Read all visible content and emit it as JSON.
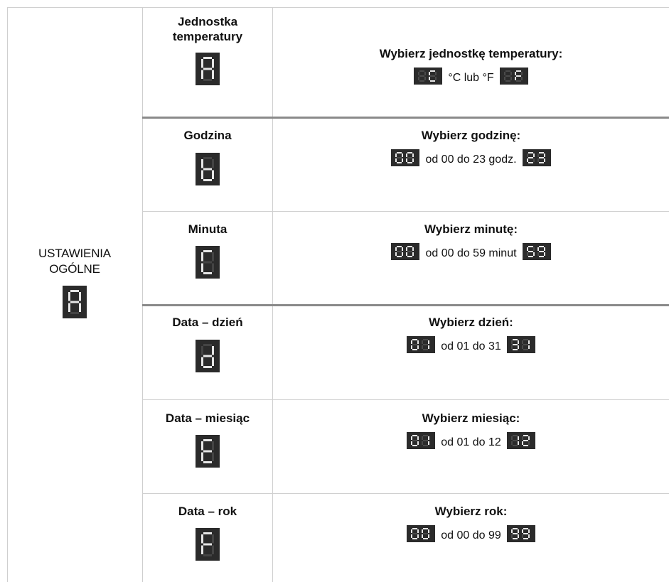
{
  "category": {
    "label_line1": "USTAWIENIA",
    "label_line2": "OGÓLNE",
    "display_char": "A"
  },
  "rows": [
    {
      "name_line1": "Jednostka",
      "name_line2": "temperatury",
      "display_char": "A",
      "title": "Wybierz jednostkę temperatury:",
      "range_text": "°C lub °F",
      "start_display": "C",
      "end_display": "F"
    },
    {
      "name_line1": "Godzina",
      "display_char": "b",
      "title": "Wybierz godzinę:",
      "range_text": "od 00 do 23 godz.",
      "start_display": "00",
      "end_display": "23"
    },
    {
      "name_line1": "Minuta",
      "display_char": "C",
      "title": "Wybierz minutę:",
      "range_text": "od 00 do 59 minut",
      "start_display": "00",
      "end_display": "59"
    },
    {
      "name_line1": "Data – dzień",
      "display_char": "d",
      "title": "Wybierz dzień:",
      "range_text": "od 01 do 31",
      "start_display": "01",
      "end_display": "31"
    },
    {
      "name_line1": "Data – miesiąc",
      "display_char": "E",
      "title": "Wybierz miesiąc:",
      "range_text": "od 01 do 12",
      "start_display": "01",
      "end_display": "12"
    },
    {
      "name_line1": "Data – rok",
      "display_char": "F",
      "title": "Wybierz rok:",
      "range_text": "od 00 do 99",
      "start_display": "00",
      "end_display": "99"
    }
  ]
}
